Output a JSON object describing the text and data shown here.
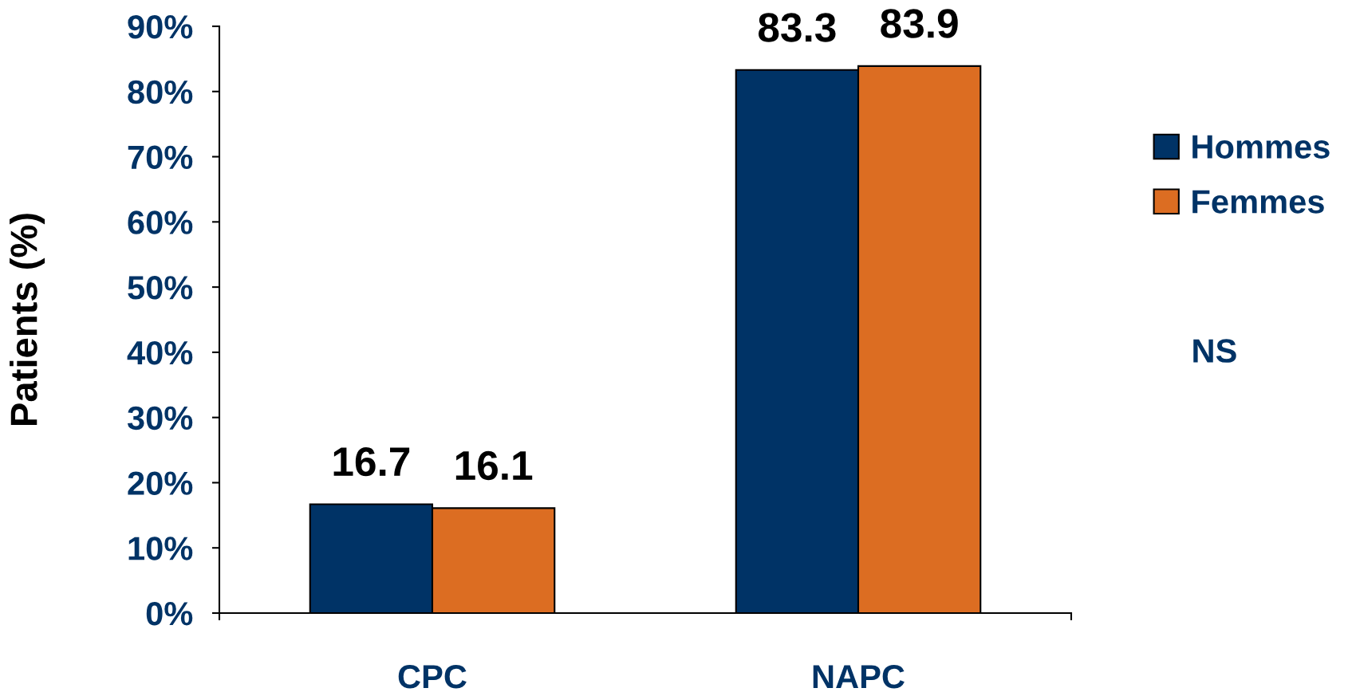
{
  "chart_data": {
    "type": "bar",
    "categories": [
      "CPC",
      "NAPC"
    ],
    "series": [
      {
        "name": "Hommes",
        "color": "#003366",
        "values": [
          16.7,
          83.3
        ]
      },
      {
        "name": "Femmes",
        "color": "#dc6d22",
        "values": [
          16.1,
          83.9
        ]
      }
    ],
    "ylabel": "Patients (%)",
    "ylim": [
      0,
      90
    ],
    "yticks": [
      {
        "value": 0,
        "label": "0%"
      },
      {
        "value": 10,
        "label": "10%"
      },
      {
        "value": 20,
        "label": "20%"
      },
      {
        "value": 30,
        "label": "30%"
      },
      {
        "value": 40,
        "label": "40%"
      },
      {
        "value": 50,
        "label": "50%"
      },
      {
        "value": 60,
        "label": "60%"
      },
      {
        "value": 70,
        "label": "70%"
      },
      {
        "value": 80,
        "label": "80%"
      },
      {
        "value": 90,
        "label": "90%"
      }
    ],
    "data_labels": true,
    "legend": "right",
    "grid": false,
    "annotations": [
      "NS"
    ]
  }
}
